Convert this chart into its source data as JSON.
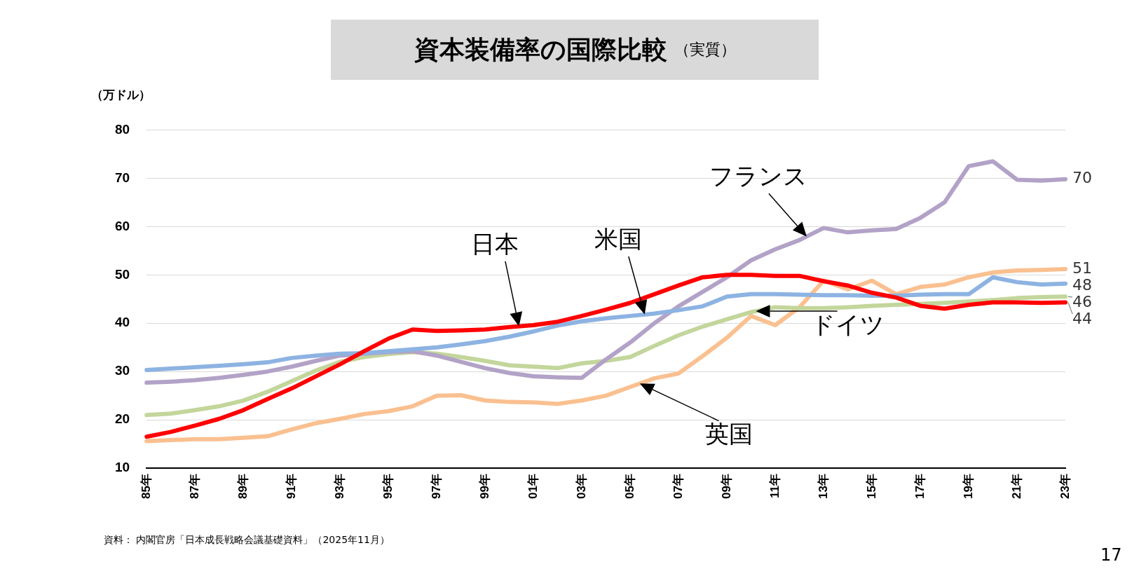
{
  "chart_data": {
    "type": "line",
    "title": "資本装備率の国際比較",
    "subtitle": "（実質）",
    "ylabel": "（万ドル）",
    "categories": [
      "85年",
      null,
      "87年",
      null,
      "89年",
      null,
      "91年",
      null,
      "93年",
      null,
      "95年",
      null,
      "97年",
      null,
      "99年",
      null,
      "01年",
      null,
      "03年",
      null,
      "05年",
      null,
      "07年",
      null,
      "09年",
      null,
      "11年",
      null,
      "13年",
      null,
      "15年",
      null,
      "17年",
      null,
      "19年",
      null,
      "21年",
      null,
      "23年"
    ],
    "ylim": [
      10,
      80
    ],
    "yticks": [
      10,
      20,
      30,
      40,
      50,
      60,
      70,
      80
    ],
    "grid": "y",
    "legend": false,
    "marker": "none",
    "line_style": "solid",
    "series": [
      {
        "name": "日本",
        "color": "#ff0000",
        "values": [
          16.5,
          17.5,
          18.8,
          20.2,
          22,
          24.3,
          26.5,
          29,
          31.5,
          34.2,
          36.8,
          38.7,
          38.4,
          38.5,
          38.7,
          39.2,
          39.6,
          40.3,
          41.5,
          42.8,
          44.2,
          46,
          47.8,
          49.5,
          50,
          50,
          49.8,
          49.8,
          48.7,
          47.8,
          46.3,
          45.3,
          43.6,
          43,
          43.8,
          44.3,
          44.3,
          44.2,
          44.3
        ],
        "value_labels": [
          null,
          null,
          null,
          null,
          null,
          null,
          null,
          null,
          null,
          null,
          null,
          null,
          null,
          null,
          null,
          null,
          null,
          null,
          null,
          null,
          null,
          null,
          null,
          null,
          null,
          null,
          null,
          null,
          null,
          null,
          null,
          null,
          null,
          null,
          null,
          null,
          null,
          null,
          "44"
        ]
      },
      {
        "name": "米国",
        "color": "#8db3e2",
        "values": [
          30.3,
          30.6,
          30.9,
          31.2,
          31.5,
          31.9,
          32.8,
          33.3,
          33.7,
          33.8,
          34.2,
          34.6,
          35,
          35.6,
          36.3,
          37.2,
          38.3,
          39.5,
          40.4,
          41,
          41.5,
          42,
          42.7,
          43.5,
          45.5,
          46,
          46,
          45.9,
          45.8,
          45.8,
          45.7,
          45.7,
          45.9,
          46,
          46,
          49.5,
          48.5,
          48,
          48.2
        ],
        "value_labels": [
          null,
          null,
          null,
          null,
          null,
          null,
          null,
          null,
          null,
          null,
          null,
          null,
          null,
          null,
          null,
          null,
          null,
          null,
          null,
          null,
          null,
          null,
          null,
          null,
          null,
          null,
          null,
          null,
          null,
          null,
          null,
          null,
          null,
          null,
          null,
          null,
          null,
          null,
          "48"
        ]
      },
      {
        "name": "フランス",
        "color": "#b3a2c7",
        "values": [
          27.7,
          27.9,
          28.2,
          28.7,
          29.3,
          30,
          31,
          32.2,
          33.3,
          33.7,
          34,
          34.2,
          33.3,
          32,
          30.7,
          29.7,
          29,
          28.8,
          28.7,
          32.5,
          36,
          40,
          43.5,
          46.5,
          49.5,
          53,
          55.3,
          57.2,
          59.7,
          58.8,
          59.2,
          59.5,
          61.8,
          65,
          72.5,
          73.5,
          69.7,
          69.5,
          69.8
        ],
        "value_labels": [
          null,
          null,
          null,
          null,
          null,
          null,
          null,
          null,
          null,
          null,
          null,
          null,
          null,
          null,
          null,
          null,
          null,
          null,
          null,
          null,
          null,
          null,
          null,
          null,
          null,
          null,
          null,
          null,
          null,
          null,
          null,
          null,
          null,
          null,
          null,
          null,
          null,
          null,
          "70"
        ]
      },
      {
        "name": "ドイツ",
        "color": "#c3d69b",
        "values": [
          21,
          21.3,
          22,
          22.8,
          24,
          25.8,
          28,
          30.2,
          32,
          33,
          33.6,
          34,
          33.7,
          33,
          32.2,
          31.3,
          31,
          30.7,
          31.7,
          32.2,
          33,
          35.3,
          37.5,
          39.3,
          40.8,
          42.3,
          43.3,
          43.1,
          43.1,
          43.3,
          43.6,
          43.8,
          44,
          44.2,
          44.5,
          44.8,
          45.2,
          45.4,
          45.5
        ],
        "value_labels": [
          null,
          null,
          null,
          null,
          null,
          null,
          null,
          null,
          null,
          null,
          null,
          null,
          null,
          null,
          null,
          null,
          null,
          null,
          null,
          null,
          null,
          null,
          null,
          null,
          null,
          null,
          null,
          null,
          null,
          null,
          null,
          null,
          null,
          null,
          null,
          null,
          null,
          null,
          "46"
        ]
      },
      {
        "name": "英国",
        "color": "#fac090",
        "values": [
          15.6,
          15.8,
          16,
          16,
          16.3,
          16.6,
          18,
          19.3,
          20.2,
          21.2,
          21.8,
          22.8,
          25,
          25.1,
          24,
          23.7,
          23.6,
          23.3,
          24,
          25,
          26.8,
          28.6,
          29.6,
          33.2,
          37,
          41.5,
          39.6,
          43.3,
          48.8,
          47,
          48.8,
          46,
          47.5,
          48,
          49.5,
          50.5,
          50.9,
          51,
          51.2
        ],
        "value_labels": [
          null,
          null,
          null,
          null,
          null,
          null,
          null,
          null,
          null,
          null,
          null,
          null,
          null,
          null,
          null,
          null,
          null,
          null,
          null,
          null,
          null,
          null,
          null,
          null,
          null,
          null,
          null,
          null,
          null,
          null,
          null,
          null,
          null,
          null,
          null,
          null,
          null,
          null,
          "51"
        ]
      }
    ],
    "annotations": [
      "資料： 内閣官房「日本成長戦略会議基礎資料」（2025年11月）",
      "17"
    ]
  }
}
